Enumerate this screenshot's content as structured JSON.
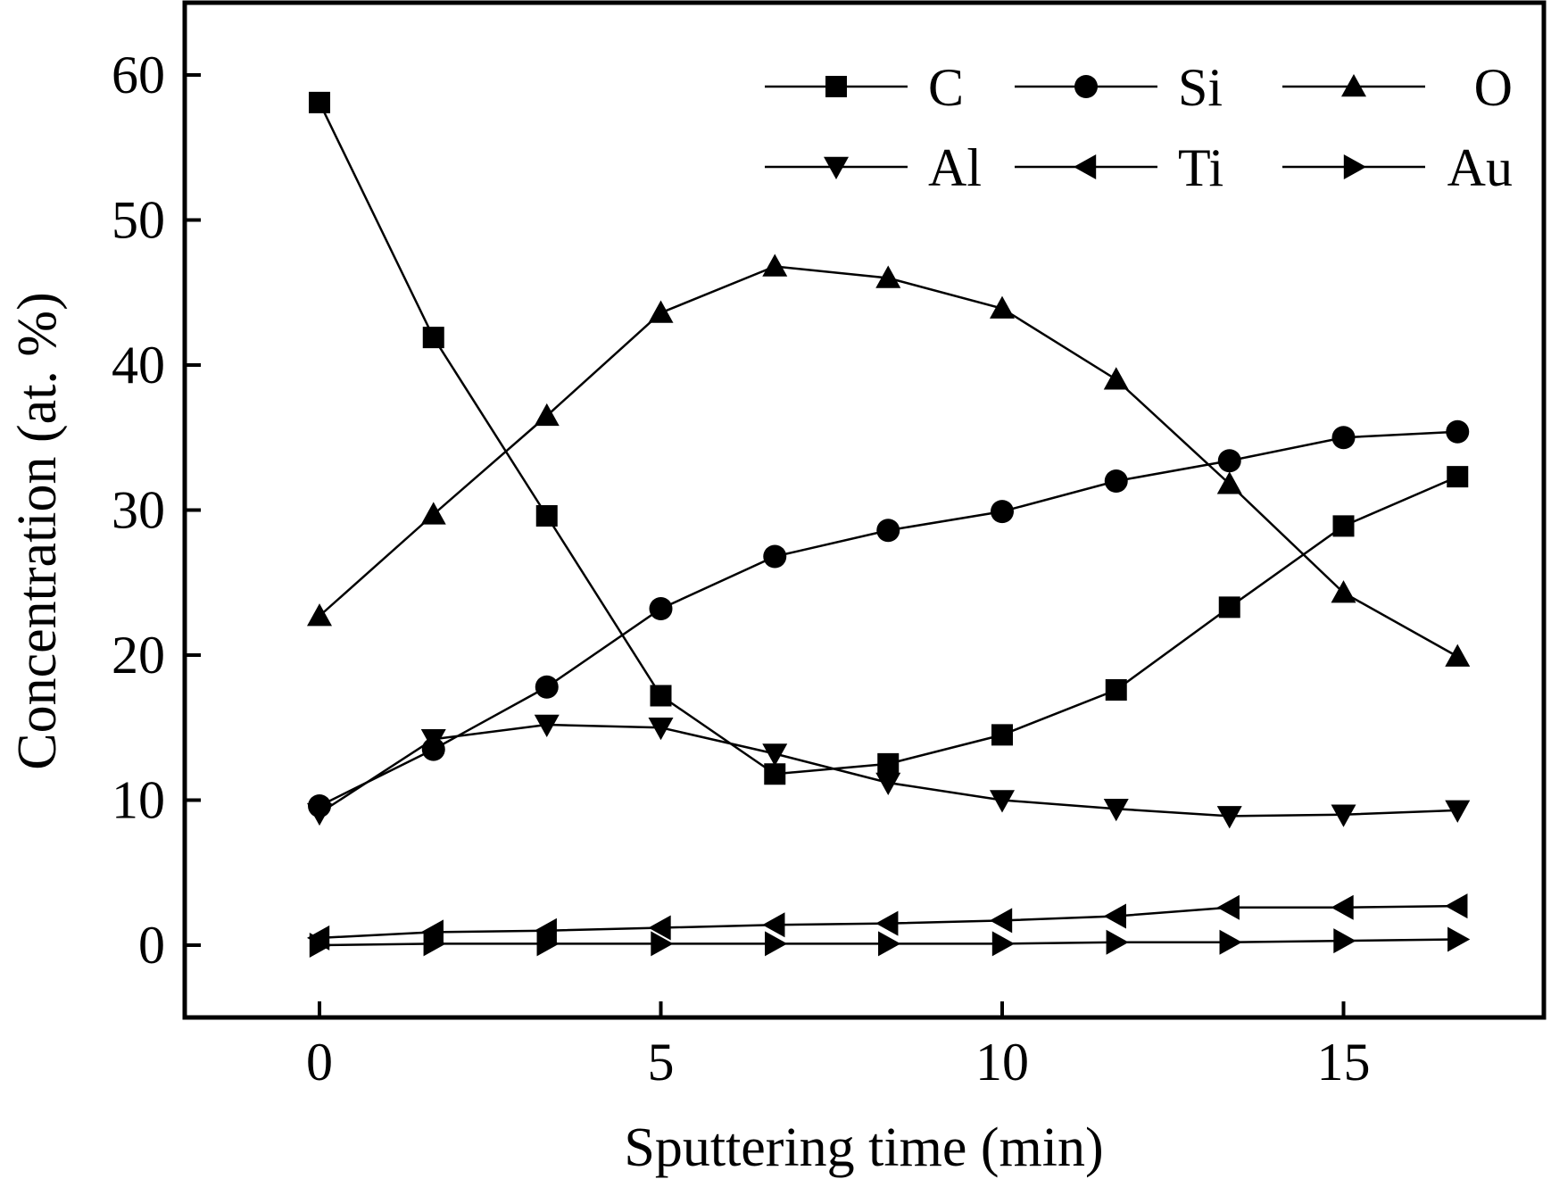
{
  "chart_data": {
    "type": "line",
    "title": "",
    "xlabel": "Sputtering time (min)",
    "ylabel": "Concentration (at. %)",
    "xlim": [
      -2,
      18.3
    ],
    "ylim": [
      -5,
      65
    ],
    "xticks": [
      0,
      5,
      10,
      15
    ],
    "yticks": [
      0,
      10,
      20,
      30,
      40,
      50,
      60
    ],
    "x": [
      0,
      1.67,
      3.33,
      5,
      6.67,
      8.33,
      10,
      11.67,
      13.33,
      15,
      16.67
    ],
    "legend_position": "top-right",
    "series": [
      {
        "name": "C",
        "marker": "square",
        "values": [
          58.1,
          41.9,
          29.6,
          17.2,
          11.8,
          12.5,
          14.5,
          17.6,
          23.3,
          28.9,
          32.3
        ]
      },
      {
        "name": "Si",
        "marker": "circle",
        "values": [
          9.6,
          13.5,
          17.8,
          23.2,
          26.8,
          28.6,
          29.9,
          32.0,
          33.4,
          35.0,
          35.4
        ]
      },
      {
        "name": "O",
        "marker": "triangle-up",
        "values": [
          22.7,
          29.7,
          36.5,
          43.6,
          46.8,
          46.0,
          43.9,
          39.0,
          31.8,
          24.3,
          19.9
        ]
      },
      {
        "name": "Al",
        "marker": "triangle-down",
        "values": [
          9.1,
          14.2,
          15.2,
          15.0,
          13.2,
          11.2,
          10.0,
          9.4,
          8.9,
          9.0,
          9.3
        ]
      },
      {
        "name": "Ti",
        "marker": "triangle-left",
        "values": [
          0.5,
          0.9,
          1.0,
          1.2,
          1.4,
          1.5,
          1.7,
          2.0,
          2.6,
          2.6,
          2.7
        ]
      },
      {
        "name": "Au",
        "marker": "triangle-right",
        "values": [
          0.0,
          0.1,
          0.1,
          0.1,
          0.1,
          0.1,
          0.1,
          0.2,
          0.2,
          0.3,
          0.4
        ]
      }
    ]
  }
}
